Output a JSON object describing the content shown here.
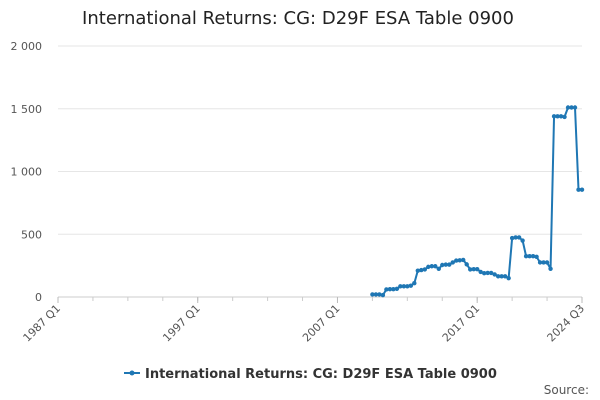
{
  "chart_data": {
    "type": "line",
    "title": "International Returns: CG: D29F ESA Table 0900",
    "source_label": "Source:",
    "ylim": [
      0,
      2000
    ],
    "y_ticks": [
      0,
      500,
      1000,
      1500,
      2000
    ],
    "y_tick_labels": [
      "0",
      "500",
      "1 000",
      "1 500",
      "2 000"
    ],
    "x_range": [
      "1987 Q1",
      "2024 Q3"
    ],
    "x_tick_labels": [
      "1987 Q1",
      "1997 Q1",
      "2007 Q1",
      "2017 Q1",
      "2024 Q3"
    ],
    "grid": true,
    "legend_position": "bottom",
    "line_color": "#1f77b4",
    "series": [
      {
        "name": "International Returns: CG: D29F ESA Table 0900",
        "points": [
          [
            "2009 Q3",
            20
          ],
          [
            "2009 Q4",
            20
          ],
          [
            "2010 Q1",
            20
          ],
          [
            "2010 Q2",
            15
          ],
          [
            "2010 Q3",
            60
          ],
          [
            "2010 Q4",
            62
          ],
          [
            "2011 Q1",
            62
          ],
          [
            "2011 Q2",
            65
          ],
          [
            "2011 Q3",
            85
          ],
          [
            "2011 Q4",
            85
          ],
          [
            "2012 Q1",
            85
          ],
          [
            "2012 Q2",
            90
          ],
          [
            "2012 Q3",
            110
          ],
          [
            "2012 Q4",
            210
          ],
          [
            "2013 Q1",
            215
          ],
          [
            "2013 Q2",
            220
          ],
          [
            "2013 Q3",
            240
          ],
          [
            "2013 Q4",
            245
          ],
          [
            "2014 Q1",
            245
          ],
          [
            "2014 Q2",
            225
          ],
          [
            "2014 Q3",
            255
          ],
          [
            "2014 Q4",
            258
          ],
          [
            "2015 Q1",
            258
          ],
          [
            "2015 Q2",
            275
          ],
          [
            "2015 Q3",
            290
          ],
          [
            "2015 Q4",
            292
          ],
          [
            "2016 Q1",
            295
          ],
          [
            "2016 Q2",
            260
          ],
          [
            "2016 Q3",
            220
          ],
          [
            "2016 Q4",
            222
          ],
          [
            "2017 Q1",
            222
          ],
          [
            "2017 Q2",
            200
          ],
          [
            "2017 Q3",
            190
          ],
          [
            "2017 Q4",
            192
          ],
          [
            "2018 Q1",
            192
          ],
          [
            "2018 Q2",
            180
          ],
          [
            "2018 Q3",
            165
          ],
          [
            "2018 Q4",
            165
          ],
          [
            "2019 Q1",
            165
          ],
          [
            "2019 Q2",
            150
          ],
          [
            "2019 Q3",
            470
          ],
          [
            "2019 Q4",
            475
          ],
          [
            "2020 Q1",
            475
          ],
          [
            "2020 Q2",
            450
          ],
          [
            "2020 Q3",
            325
          ],
          [
            "2020 Q4",
            325
          ],
          [
            "2021 Q1",
            325
          ],
          [
            "2021 Q2",
            320
          ],
          [
            "2021 Q3",
            275
          ],
          [
            "2021 Q4",
            275
          ],
          [
            "2022 Q1",
            275
          ],
          [
            "2022 Q2",
            225
          ],
          [
            "2022 Q3",
            1440
          ],
          [
            "2022 Q4",
            1440
          ],
          [
            "2023 Q1",
            1440
          ],
          [
            "2023 Q2",
            1435
          ],
          [
            "2023 Q3",
            1510
          ],
          [
            "2023 Q4",
            1510
          ],
          [
            "2024 Q1",
            1510
          ],
          [
            "2024 Q2",
            855
          ],
          [
            "2024 Q3",
            855
          ]
        ]
      }
    ]
  }
}
